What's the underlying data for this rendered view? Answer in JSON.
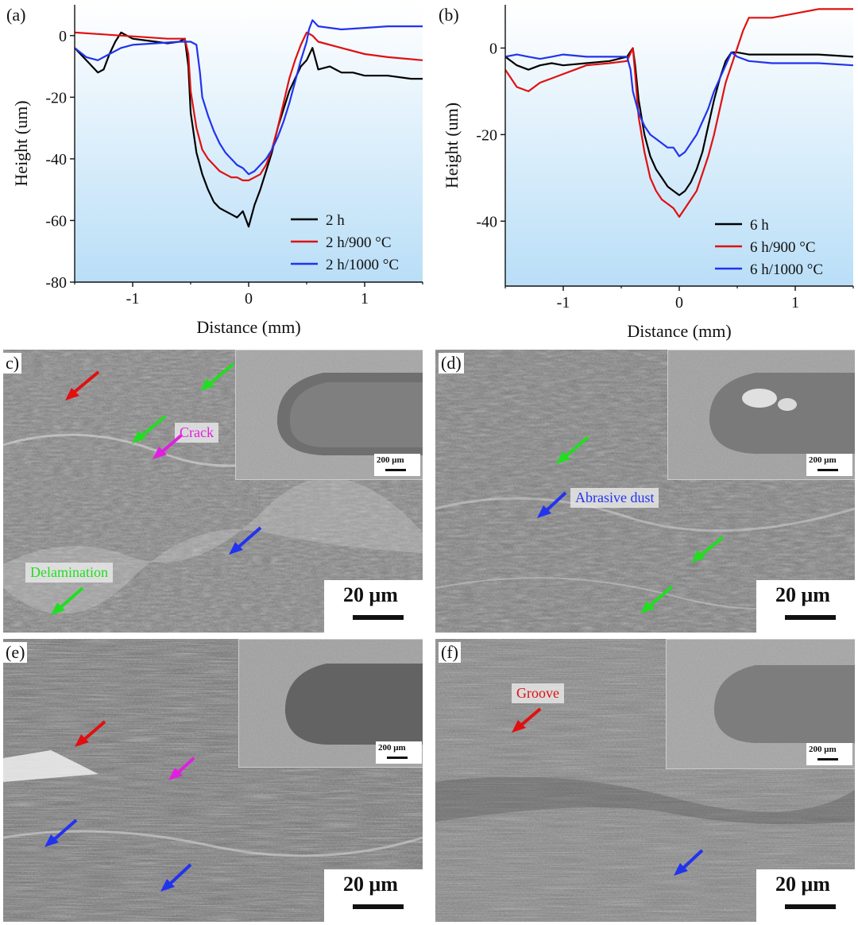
{
  "panels": {
    "a": {
      "letter": "(a)"
    },
    "b": {
      "letter": "(b)"
    },
    "c": {
      "letter": "c)"
    },
    "d": {
      "letter": "(d)"
    },
    "e": {
      "letter": "(e)"
    },
    "f": {
      "letter": "(f)"
    }
  },
  "chart_data": [
    {
      "type": "line",
      "panel": "(a)",
      "xlabel": "Distance (mm)",
      "ylabel": "Height (um)",
      "xlim": [
        -1.5,
        1.5
      ],
      "ylim": [
        -80,
        10
      ],
      "xticks": [
        -1,
        0,
        1
      ],
      "xtick_labels": [
        "-1",
        "0",
        "1"
      ],
      "yticks": [
        0,
        -20,
        -40,
        -60,
        -80
      ],
      "ytick_labels": [
        "0",
        "-20",
        "-40",
        "-60",
        "-80"
      ],
      "legend_position": "bottom-right",
      "series": [
        {
          "name": "2 h",
          "color": "#000000",
          "x": [
            -1.5,
            -1.4,
            -1.3,
            -1.25,
            -1.2,
            -1.15,
            -1.1,
            -1.05,
            -1.0,
            -0.9,
            -0.8,
            -0.7,
            -0.6,
            -0.55,
            -0.52,
            -0.5,
            -0.45,
            -0.4,
            -0.35,
            -0.3,
            -0.25,
            -0.2,
            -0.15,
            -0.1,
            -0.05,
            0.0,
            0.05,
            0.1,
            0.15,
            0.2,
            0.25,
            0.3,
            0.35,
            0.4,
            0.45,
            0.5,
            0.55,
            0.6,
            0.7,
            0.8,
            0.9,
            1.0,
            1.2,
            1.4,
            1.5
          ],
          "y": [
            -4,
            -8,
            -12,
            -11,
            -6,
            -2,
            1,
            0,
            -1,
            -1.5,
            -2,
            -2.5,
            -2,
            -1,
            -10,
            -25,
            -38,
            -45,
            -50,
            -54,
            -56,
            -57,
            -58,
            -59,
            -57,
            -62,
            -55,
            -50,
            -44,
            -38,
            -30,
            -24,
            -18,
            -14,
            -10,
            -8,
            -4,
            -11,
            -10,
            -12,
            -12,
            -13,
            -13,
            -14,
            -14
          ]
        },
        {
          "name": "2 h/900 °C",
          "color": "#e01010",
          "x": [
            -1.5,
            -1.3,
            -1.1,
            -0.9,
            -0.7,
            -0.55,
            -0.52,
            -0.5,
            -0.45,
            -0.4,
            -0.35,
            -0.3,
            -0.25,
            -0.2,
            -0.15,
            -0.1,
            -0.05,
            0.0,
            0.05,
            0.1,
            0.15,
            0.2,
            0.25,
            0.3,
            0.35,
            0.4,
            0.45,
            0.5,
            0.55,
            0.6,
            0.8,
            1.0,
            1.2,
            1.5
          ],
          "y": [
            1,
            0.5,
            0,
            -0.5,
            -1,
            -1,
            -6,
            -18,
            -30,
            -37,
            -40,
            -42,
            -44,
            -45,
            -46,
            -46,
            -47,
            -47,
            -46,
            -45,
            -42,
            -37,
            -30,
            -22,
            -14,
            -8,
            -3,
            1,
            0,
            -2,
            -4,
            -6,
            -7,
            -8
          ]
        },
        {
          "name": "2 h/1000 °C",
          "color": "#2233ee",
          "x": [
            -1.5,
            -1.4,
            -1.3,
            -1.2,
            -1.1,
            -1.0,
            -0.8,
            -0.6,
            -0.5,
            -0.45,
            -0.42,
            -0.4,
            -0.35,
            -0.3,
            -0.25,
            -0.2,
            -0.15,
            -0.1,
            -0.05,
            0.0,
            0.05,
            0.1,
            0.15,
            0.2,
            0.25,
            0.3,
            0.35,
            0.4,
            0.45,
            0.5,
            0.52,
            0.55,
            0.6,
            0.8,
            1.0,
            1.2,
            1.5
          ],
          "y": [
            -4,
            -7,
            -8,
            -6,
            -4,
            -3,
            -2.5,
            -2,
            -2,
            -3,
            -12,
            -20,
            -26,
            -31,
            -35,
            -38,
            -40,
            -42,
            -43,
            -45,
            -44,
            -42,
            -40,
            -37,
            -33,
            -28,
            -22,
            -15,
            -8,
            -2,
            2,
            5,
            3,
            2,
            2.5,
            3,
            3
          ]
        }
      ]
    },
    {
      "type": "line",
      "panel": "(b)",
      "xlabel": "Distance (mm)",
      "ylabel": "Height (um)",
      "xlim": [
        -1.5,
        1.5
      ],
      "ylim": [
        -55,
        10
      ],
      "xticks": [
        -1,
        0,
        1
      ],
      "xtick_labels": [
        "-1",
        "0",
        "1"
      ],
      "yticks": [
        0,
        -20,
        -40
      ],
      "ytick_labels": [
        "0",
        "-20",
        "-40"
      ],
      "legend_position": "bottom-right",
      "series": [
        {
          "name": "6 h",
          "color": "#000000",
          "x": [
            -1.5,
            -1.4,
            -1.3,
            -1.2,
            -1.1,
            -1.0,
            -0.8,
            -0.6,
            -0.45,
            -0.4,
            -0.38,
            -0.35,
            -0.3,
            -0.25,
            -0.2,
            -0.15,
            -0.1,
            -0.05,
            0.0,
            0.05,
            0.1,
            0.15,
            0.2,
            0.25,
            0.3,
            0.35,
            0.4,
            0.45,
            0.5,
            0.6,
            0.8,
            1.0,
            1.2,
            1.5
          ],
          "y": [
            -2,
            -4,
            -5,
            -4,
            -3.5,
            -4,
            -3.5,
            -3,
            -2,
            0,
            -4,
            -12,
            -20,
            -25,
            -28,
            -30,
            -32,
            -33,
            -34,
            -33,
            -31,
            -28,
            -24,
            -18,
            -12,
            -7,
            -3,
            -1,
            -1,
            -1.5,
            -1.5,
            -1.5,
            -1.5,
            -2
          ]
        },
        {
          "name": "6 h/900 °C",
          "color": "#e01010",
          "x": [
            -1.5,
            -1.4,
            -1.3,
            -1.2,
            -1.1,
            -1.0,
            -0.9,
            -0.8,
            -0.6,
            -0.45,
            -0.4,
            -0.38,
            -0.35,
            -0.3,
            -0.25,
            -0.2,
            -0.15,
            -0.1,
            -0.05,
            0.0,
            0.05,
            0.1,
            0.15,
            0.2,
            0.25,
            0.3,
            0.35,
            0.4,
            0.45,
            0.5,
            0.55,
            0.6,
            0.8,
            1.0,
            1.2,
            1.5
          ],
          "y": [
            -5,
            -9,
            -10,
            -8,
            -7,
            -6,
            -5,
            -4,
            -3.5,
            -3,
            0,
            -6,
            -16,
            -24,
            -30,
            -33,
            -35,
            -36,
            -37,
            -39,
            -37,
            -35,
            -33,
            -29,
            -25,
            -20,
            -14,
            -8,
            -4,
            0,
            4,
            7,
            7,
            8,
            9,
            9
          ]
        },
        {
          "name": "6 h/1000 °C",
          "color": "#2233ee",
          "x": [
            -1.5,
            -1.4,
            -1.3,
            -1.2,
            -1.1,
            -1.0,
            -0.8,
            -0.6,
            -0.45,
            -0.42,
            -0.4,
            -0.35,
            -0.3,
            -0.25,
            -0.2,
            -0.15,
            -0.1,
            -0.05,
            0.0,
            0.05,
            0.1,
            0.15,
            0.2,
            0.25,
            0.3,
            0.35,
            0.4,
            0.45,
            0.5,
            0.6,
            0.8,
            1.0,
            1.2,
            1.5
          ],
          "y": [
            -2,
            -1.5,
            -2,
            -2.5,
            -2,
            -1.5,
            -2,
            -2,
            -2,
            -5,
            -10,
            -15,
            -18,
            -20,
            -21,
            -22,
            -23,
            -23,
            -25,
            -24,
            -22,
            -20,
            -17,
            -14,
            -10,
            -7,
            -4,
            -1,
            -2,
            -3,
            -3.5,
            -3.5,
            -3.5,
            -4
          ]
        }
      ]
    }
  ],
  "sem": {
    "c": {
      "scale_bar": "20 μm",
      "inset_scale": "200 μm",
      "labels": {
        "crack": "Crack",
        "delamination": "Delamination"
      }
    },
    "d": {
      "scale_bar": "20 μm",
      "inset_scale": "200 μm",
      "labels": {
        "abrasive": "Abrasive dust"
      }
    },
    "e": {
      "scale_bar": "20 μm",
      "inset_scale": "200 μm"
    },
    "f": {
      "scale_bar": "20 μm",
      "inset_scale": "200 μm",
      "labels": {
        "groove": "Groove"
      }
    }
  },
  "colors": {
    "plot_bg_top": "#ffffff",
    "plot_bg_bottom": "#b9def7",
    "arrow_red": "#e01010",
    "arrow_green": "#22dd22",
    "arrow_blue": "#2233ee",
    "arrow_magenta": "#e020e0"
  }
}
